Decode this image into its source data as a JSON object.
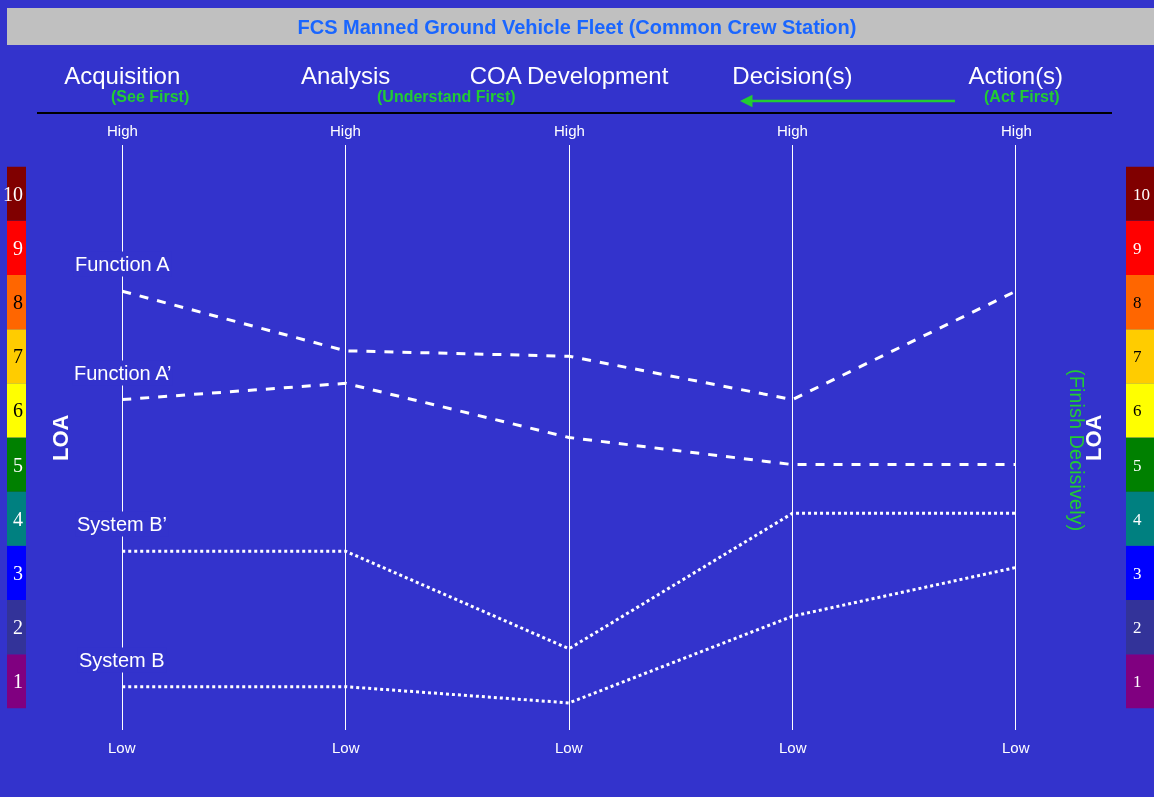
{
  "chart_data": {
    "type": "line",
    "title": "FCS Manned Ground Vehicle Fleet (Common Crew Station)",
    "categories": [
      "Acquisition",
      "Analysis",
      "COA Development",
      "Decision(s)",
      "Action(s)"
    ],
    "series": [
      {
        "name": "Function A",
        "color": "#ffffff",
        "line_style": "dashed",
        "values": [
          8.2,
          7.1,
          7.0,
          6.2,
          8.2
        ]
      },
      {
        "name": "Function A’",
        "color": "#ffffff",
        "line_style": "dashed",
        "values": [
          6.2,
          6.5,
          5.5,
          5.0,
          5.0
        ]
      },
      {
        "name": "System B’",
        "color": "#ffffff",
        "line_style": "dotted",
        "values": [
          3.4,
          3.4,
          1.6,
          4.1,
          4.1
        ]
      },
      {
        "name": "System B",
        "color": "#ffffff",
        "line_style": "dotted",
        "values": [
          0.9,
          0.9,
          0.6,
          2.2,
          3.1
        ]
      }
    ],
    "ylabel": "LOA",
    "y2label": "LOA",
    "ylim": [
      0.1,
      10.9
    ],
    "yticks": [
      1,
      2,
      3,
      4,
      5,
      6,
      7,
      8,
      9,
      10
    ],
    "y2lim": [
      0.1,
      10.9
    ],
    "y2ticks": [
      1,
      2,
      3,
      4,
      5,
      6,
      7,
      8,
      9,
      10
    ],
    "grid": "x",
    "legend": false,
    "marker": "none",
    "annotations": [
      "(See First)",
      "(Understand First)",
      "(Act First)",
      "(Finish Decisively)",
      "High",
      "High",
      "High",
      "High",
      "High",
      "Low",
      "Low",
      "Low",
      "Low",
      "Low"
    ]
  }
}
